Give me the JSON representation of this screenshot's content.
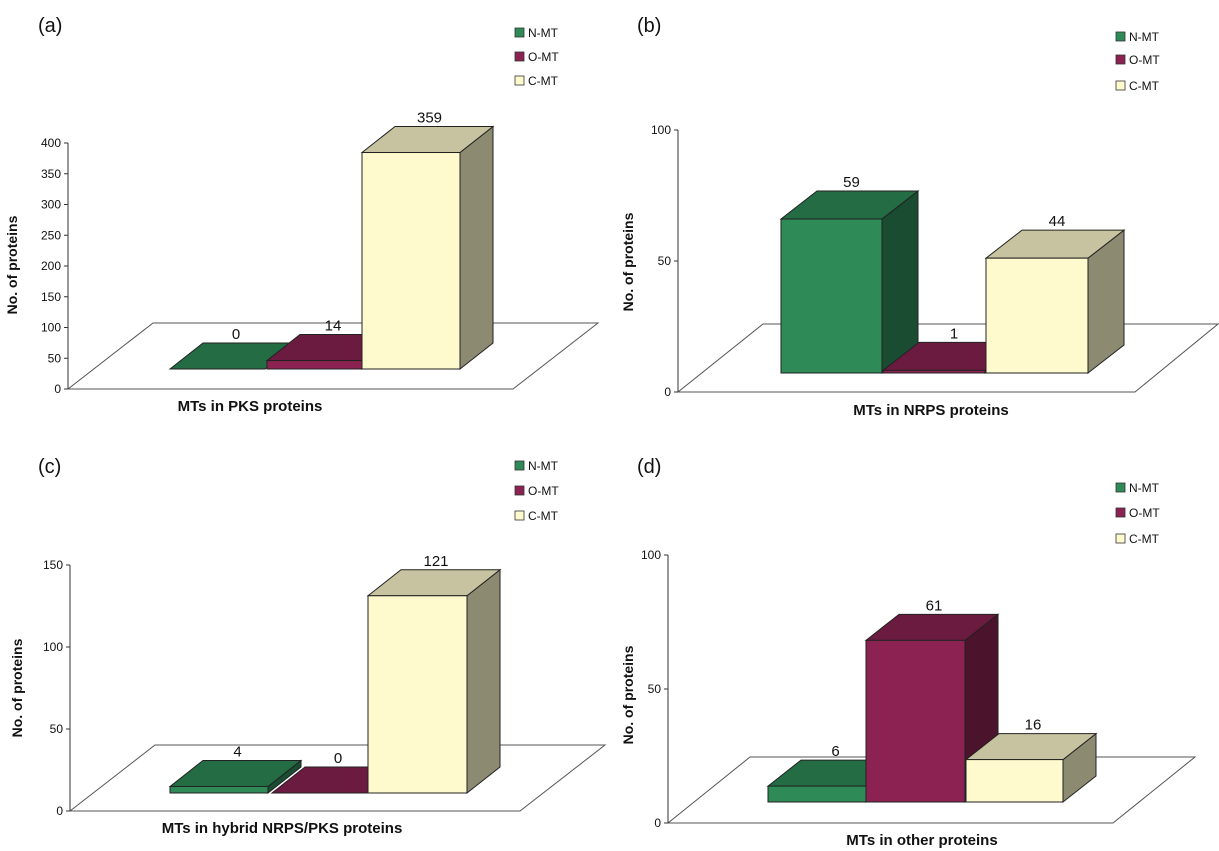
{
  "panels": [
    {
      "panel_label": "(a)",
      "legend": [
        "N-MT",
        "O-MT",
        "C-MT"
      ],
      "colors": [
        "#2e8b57",
        "#8b2252",
        "#fffacd"
      ],
      "chart_data": {
        "type": "bar",
        "categories": [
          "N-MT",
          "O-MT",
          "C-MT"
        ],
        "values": [
          0,
          14,
          359
        ],
        "data_labels": [
          "0",
          "14",
          "359"
        ],
        "xlabel": "MTs in PKS proteins",
        "ylabel": "No. of proteins",
        "ylim": [
          0,
          400
        ],
        "yticks": [
          "0",
          "50",
          "100",
          "150",
          "200",
          "250",
          "300",
          "350",
          "400"
        ],
        "legend_position": "top-right",
        "grid": false
      }
    },
    {
      "panel_label": "(b)",
      "legend": [
        "N-MT",
        "O-MT",
        "C-MT"
      ],
      "colors": [
        "#2e8b57",
        "#8b2252",
        "#fffacd"
      ],
      "chart_data": {
        "type": "bar",
        "categories": [
          "N-MT",
          "O-MT",
          "C-MT"
        ],
        "values": [
          59,
          1,
          44
        ],
        "data_labels": [
          "59",
          "1",
          "44"
        ],
        "xlabel": "MTs in NRPS proteins",
        "ylabel": "No. of proteins",
        "ylim": [
          0,
          100
        ],
        "yticks": [
          "0",
          "50",
          "100"
        ],
        "legend_position": "top-right",
        "grid": false
      }
    },
    {
      "panel_label": "(c)",
      "legend": [
        "N-MT",
        "O-MT",
        "C-MT"
      ],
      "colors": [
        "#2e8b57",
        "#8b2252",
        "#fffacd"
      ],
      "chart_data": {
        "type": "bar",
        "categories": [
          "N-MT",
          "O-MT",
          "C-MT"
        ],
        "values": [
          4,
          0,
          121
        ],
        "data_labels": [
          "4",
          "0",
          "121"
        ],
        "xlabel": "MTs in hybrid NRPS/PKS proteins",
        "ylabel": "No. of proteins",
        "ylim": [
          0,
          150
        ],
        "yticks": [
          "0",
          "50",
          "100",
          "150"
        ],
        "legend_position": "top-right",
        "grid": false
      }
    },
    {
      "panel_label": "(d)",
      "legend": [
        "N-MT",
        "O-MT",
        "C-MT"
      ],
      "colors": [
        "#2e8b57",
        "#8b2252",
        "#fffacd"
      ],
      "chart_data": {
        "type": "bar",
        "categories": [
          "N-MT",
          "O-MT",
          "C-MT"
        ],
        "values": [
          6,
          61,
          16
        ],
        "data_labels": [
          "6",
          "61",
          "16"
        ],
        "xlabel": "MTs in other proteins",
        "ylabel": "No. of proteins",
        "ylim": [
          0,
          100
        ],
        "yticks": [
          "0",
          "50",
          "100"
        ],
        "legend_position": "top-right",
        "grid": false
      }
    }
  ]
}
